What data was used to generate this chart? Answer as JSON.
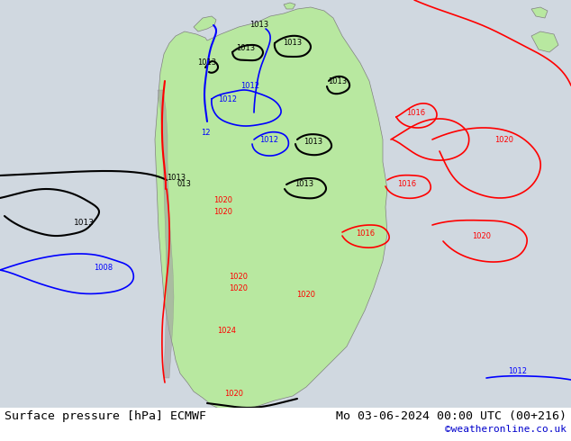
{
  "title_left": "Surface pressure [hPa] ECMWF",
  "title_right": "Mo 03-06-2024 00:00 UTC (00+216)",
  "credit": "©weatheronline.co.uk",
  "bg_color": "#d0d8e0",
  "land_color": "#b8e8a0",
  "fig_width": 6.34,
  "fig_height": 4.9,
  "dpi": 100,
  "title_fontsize": 9.5,
  "credit_fontsize": 8,
  "credit_color": "#0000cc"
}
